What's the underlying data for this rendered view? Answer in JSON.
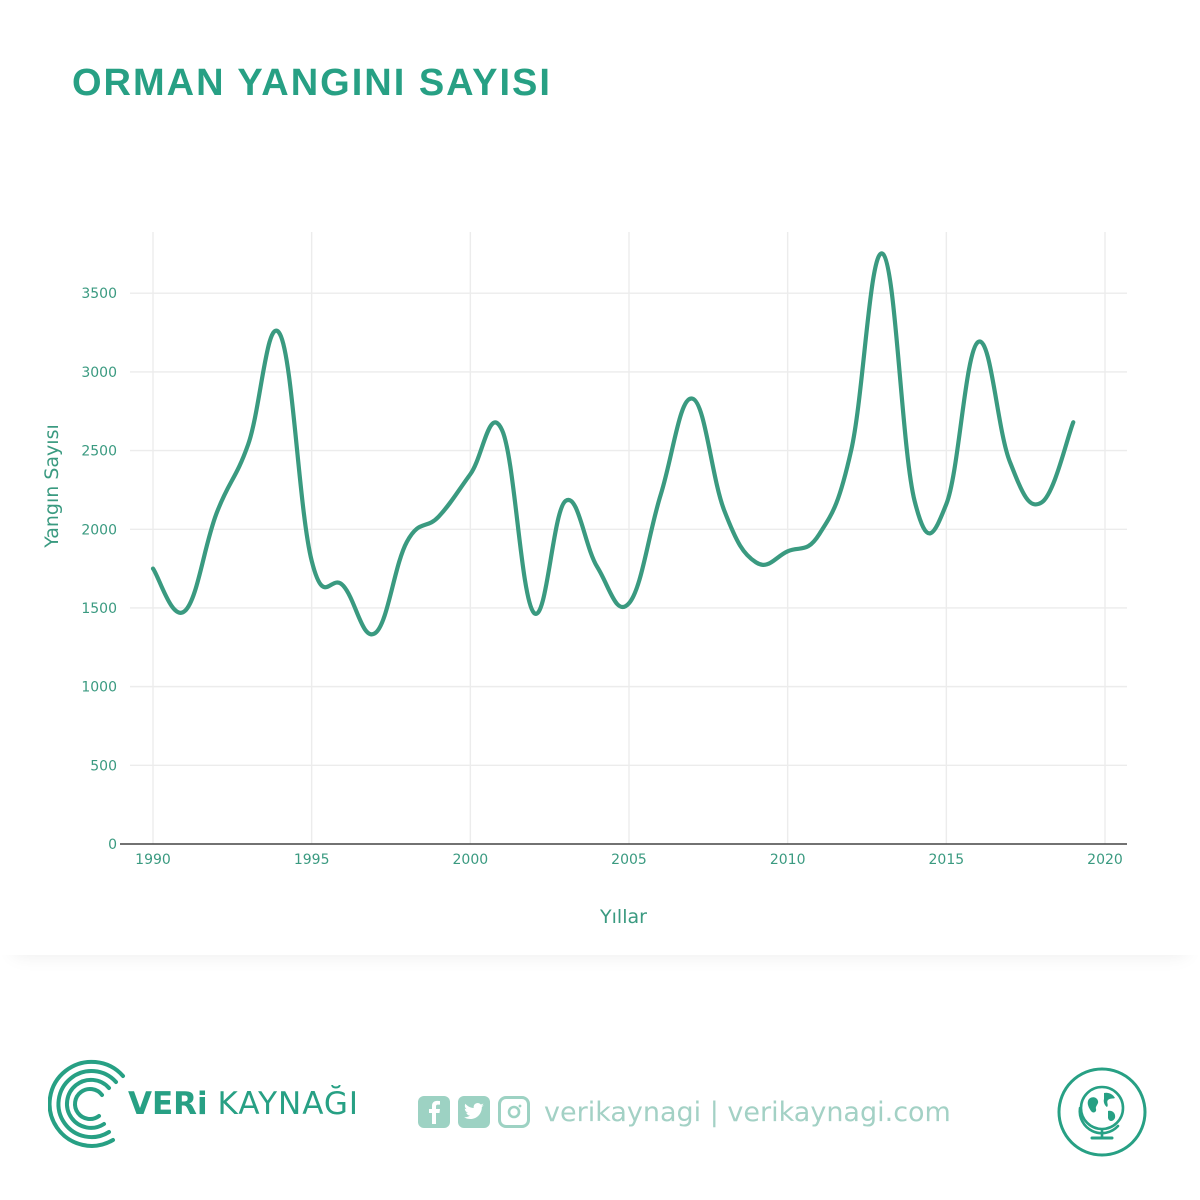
{
  "title": "ORMAN YANGINI SAYISI",
  "chart_data": {
    "type": "line",
    "title": "ORMAN YANGINI SAYISI",
    "xlabel": "Yıllar",
    "ylabel": "Yangın Sayısı",
    "xlim": [
      1990,
      2020
    ],
    "ylim": [
      0,
      3800
    ],
    "xticks": [
      "1990",
      "1995",
      "2000",
      "2005",
      "2010",
      "2015",
      "2020"
    ],
    "yticks": [
      "0",
      "500",
      "1000",
      "1500",
      "2000",
      "2500",
      "3000",
      "3500"
    ],
    "grid": true,
    "smooth": true,
    "color": "#3a9a80",
    "x": [
      1990,
      1991,
      1992,
      1993,
      1994,
      1995,
      1996,
      1997,
      1998,
      1999,
      2000,
      2001,
      2002,
      2003,
      2004,
      2005,
      2006,
      2007,
      2008,
      2009,
      2010,
      2011,
      2012,
      2013,
      2014,
      2015,
      2016,
      2017,
      2018,
      2019
    ],
    "values": [
      1750,
      1480,
      2100,
      2540,
      3240,
      1800,
      1640,
      1340,
      1920,
      2080,
      2350,
      2630,
      1470,
      2180,
      1760,
      1530,
      2220,
      2830,
      2120,
      1790,
      1860,
      1970,
      2500,
      3750,
      2180,
      2160,
      3190,
      2430,
      2170,
      2680
    ]
  },
  "footer": {
    "brand_bold": "VERi",
    "brand_light": "KAYNAĞI",
    "social_text": "verikaynagi | verikaynagi.com"
  },
  "colors": {
    "accent": "#27a084",
    "line": "#3a9a80",
    "social": "#a3d1c5"
  },
  "icons": [
    "logo-rings-icon",
    "facebook-icon",
    "twitter-icon",
    "instagram-icon",
    "globe-icon"
  ]
}
